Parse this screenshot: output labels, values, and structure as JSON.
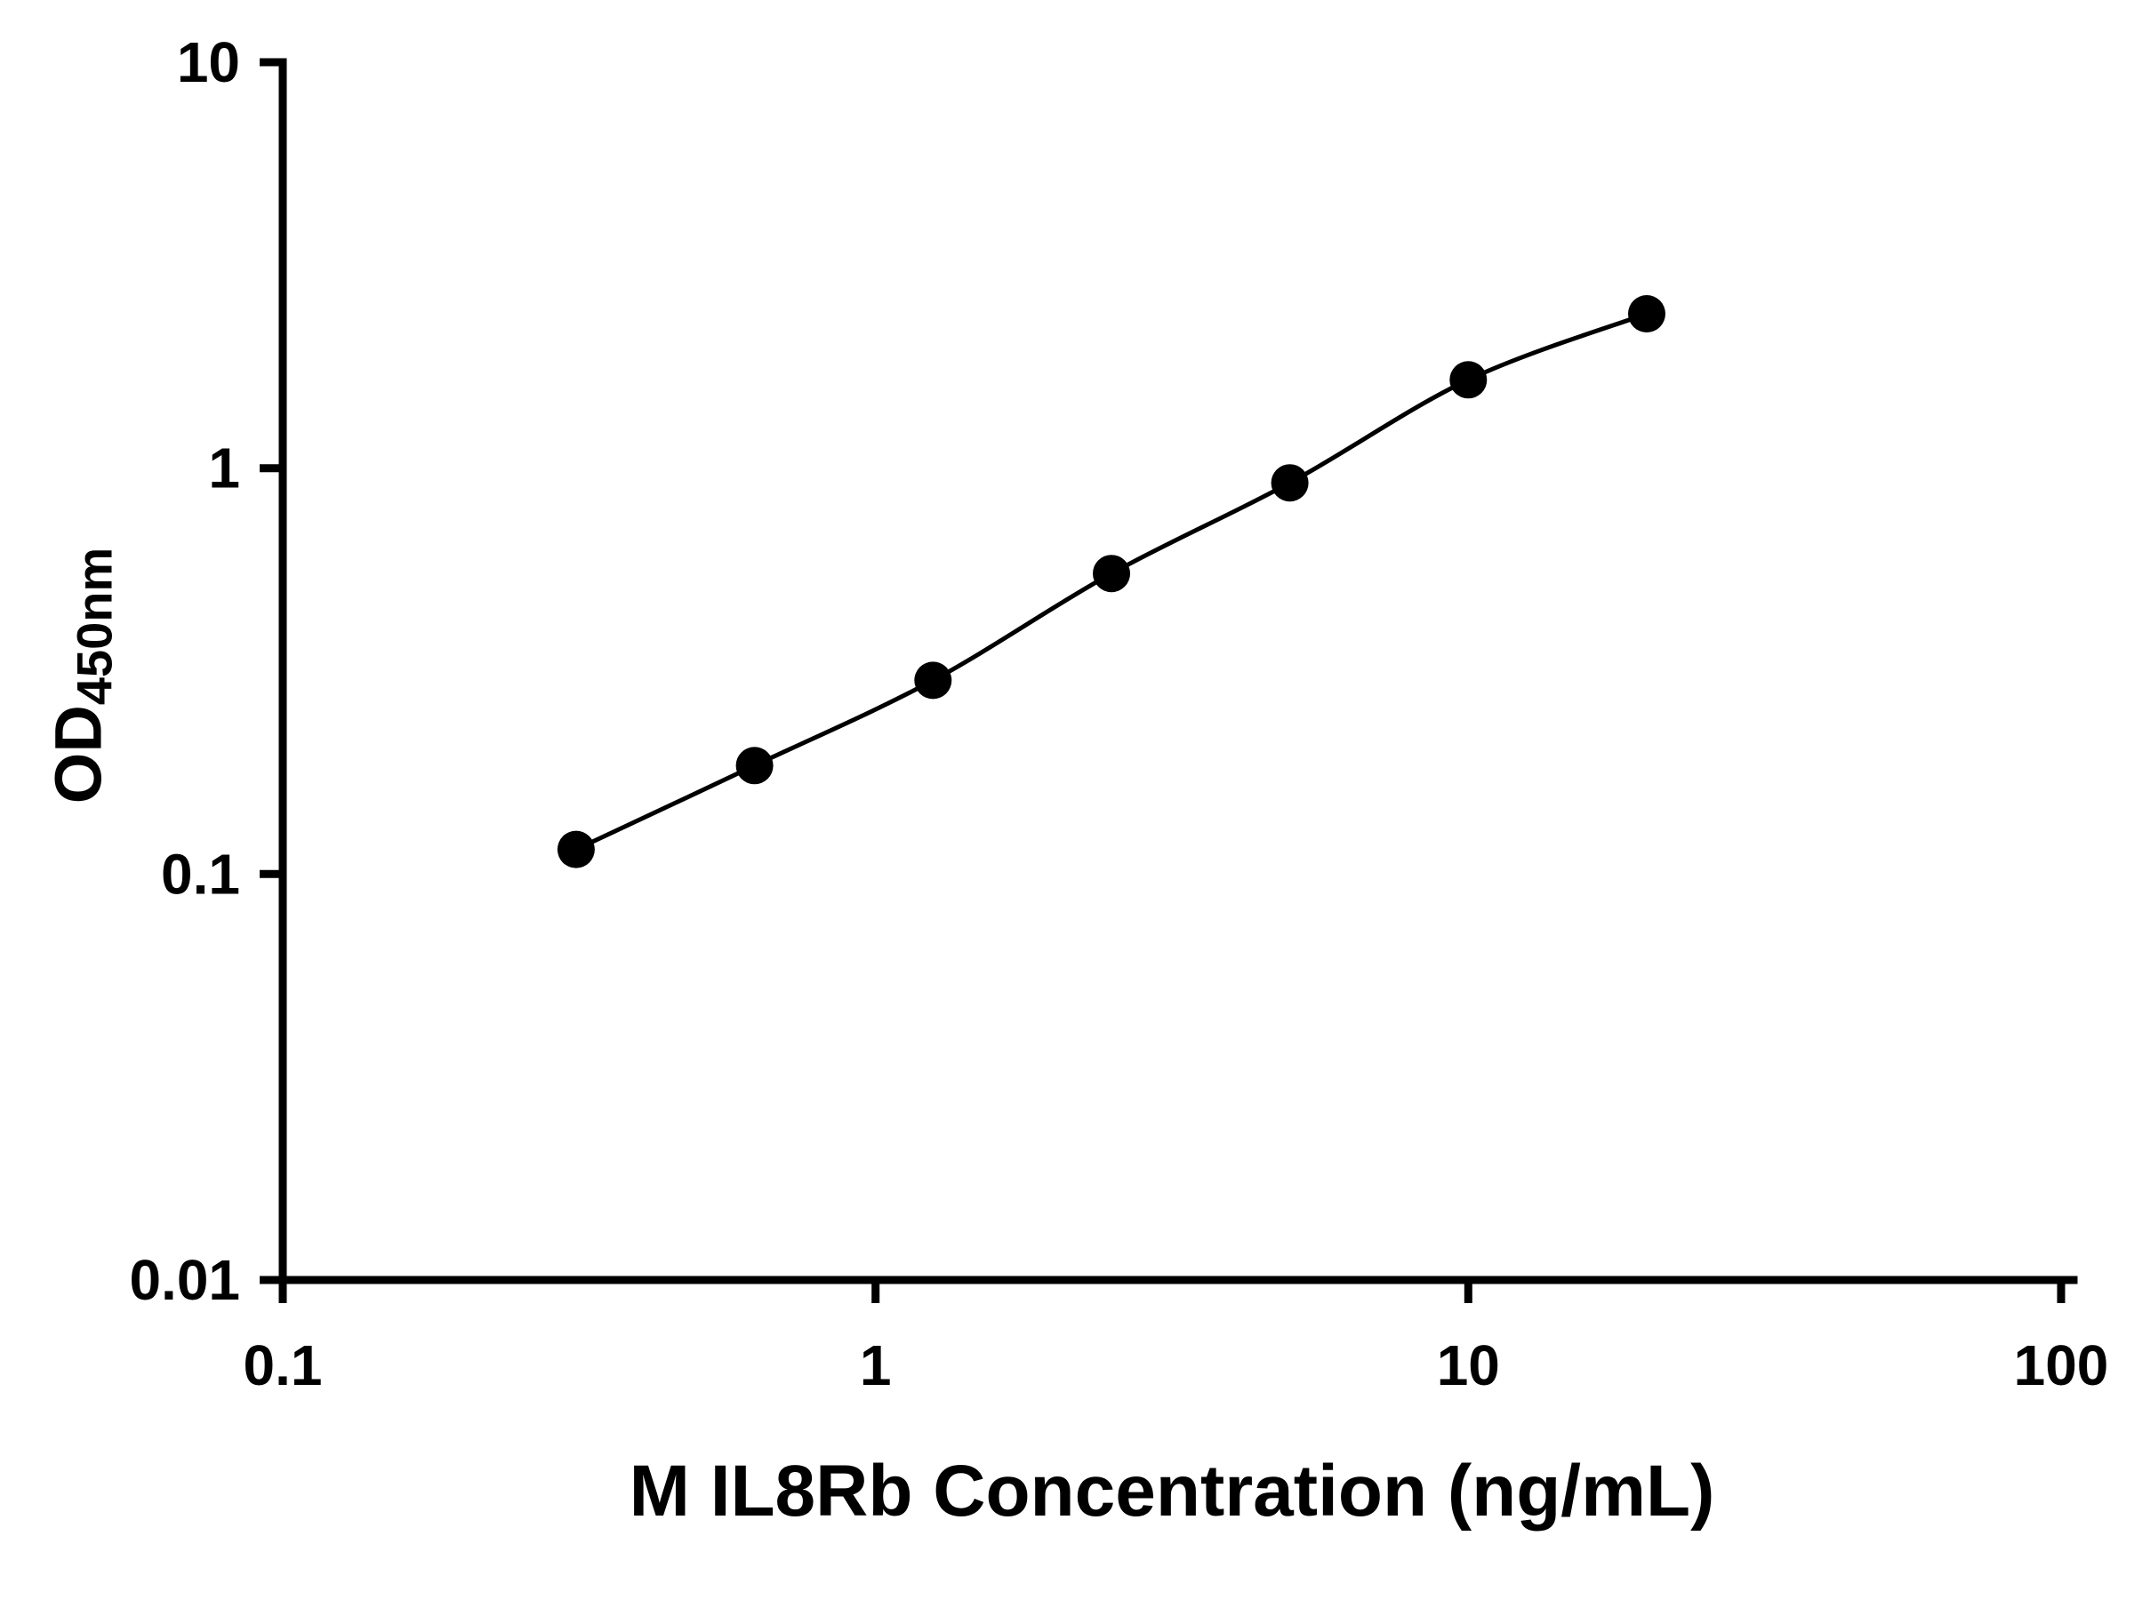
{
  "chart_data": {
    "type": "scatter",
    "subtype": "standard-curve-with-fitted-line",
    "xlabel": "M IL8Rb Concentration (ng/mL)",
    "ylabel_main": "OD",
    "ylabel_sub": "450nm",
    "x": [
      0.3125,
      0.625,
      1.25,
      2.5,
      5,
      10,
      20
    ],
    "y": [
      0.115,
      0.185,
      0.3,
      0.55,
      0.92,
      1.65,
      2.4
    ],
    "x_scale": "log",
    "y_scale": "log",
    "xlim": [
      0.1,
      100
    ],
    "ylim": [
      0.01,
      10
    ],
    "x_ticks": [
      {
        "value": 0.1,
        "label": "0.1"
      },
      {
        "value": 1,
        "label": "1"
      },
      {
        "value": 10,
        "label": "10"
      },
      {
        "value": 100,
        "label": "100"
      }
    ],
    "y_ticks": [
      {
        "value": 0.01,
        "label": "0.01"
      },
      {
        "value": 0.1,
        "label": "0.1"
      },
      {
        "value": 1,
        "label": "1"
      },
      {
        "value": 10,
        "label": "10"
      }
    ],
    "grid": false,
    "legend": false,
    "marker_color": "#000000",
    "line_color": "#000000",
    "axis_color": "#000000",
    "background_color": "#ffffff"
  }
}
